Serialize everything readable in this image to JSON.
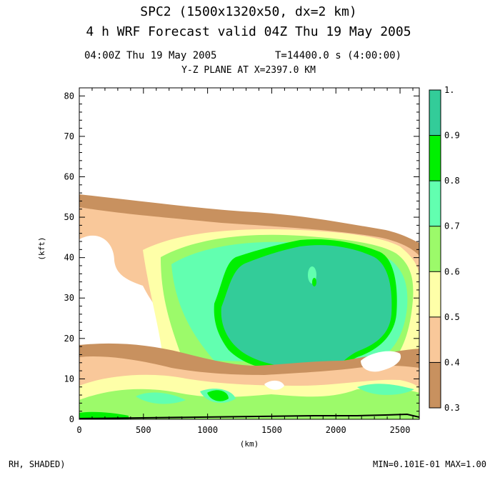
{
  "header": {
    "title_line1": "SPC2 (1500x1320x50, dx=2 km)",
    "title_line2": "4 h WRF Forecast valid 04Z Thu 19 May 2005",
    "time_left": "04:00Z Thu 19 May 2005",
    "time_right": "T=14400.0 s (4:00:00)",
    "plane_label": "Y-Z PLANE AT X=2397.0 KM"
  },
  "footer": {
    "field_label": "RH, SHADED)",
    "minmax": "MIN=0.101E-01 MAX=1.00"
  },
  "chart_data": {
    "type": "heatmap",
    "xlabel": "(km)",
    "ylabel": "(kft)",
    "xlim": [
      0,
      2650
    ],
    "ylim": [
      0,
      82
    ],
    "x_ticks": [
      0,
      500,
      1000,
      1500,
      2000,
      2500
    ],
    "y_ticks": [
      0,
      10,
      20,
      30,
      40,
      50,
      60,
      70,
      80
    ],
    "colorbar": {
      "levels": [
        0.3,
        0.4,
        0.5,
        0.6,
        0.7,
        0.8,
        0.9,
        1.0
      ],
      "tick_labels": [
        "0.3",
        "0.4",
        "0.5",
        "0.6",
        "0.7",
        "0.8",
        "0.9",
        "1."
      ],
      "colors": [
        "#c8915f",
        "#f9c89a",
        "#feffa8",
        "#9cfa6a",
        "#62ffb0",
        "#00f000",
        "#33cc99"
      ]
    },
    "features": [
      {
        "name": "upper-band",
        "x_range": [
          0,
          2650
        ],
        "z_range": [
          38,
          55
        ],
        "level": 0.3
      },
      {
        "name": "storm-anvil",
        "x_range": [
          600,
          2500
        ],
        "z_range": [
          5,
          47
        ],
        "level": 0.5
      },
      {
        "name": "core",
        "x_range": [
          1040,
          2400
        ],
        "z_range": [
          8,
          43
        ],
        "level": 0.9
      },
      {
        "name": "lower-band",
        "x_range": [
          0,
          2650
        ],
        "z_range": [
          0,
          18
        ],
        "level": 0.3
      }
    ]
  }
}
